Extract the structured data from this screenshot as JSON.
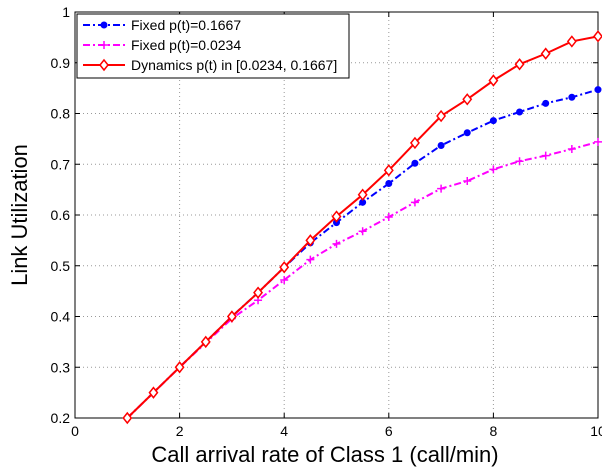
{
  "chart_data": {
    "type": "line",
    "xlabel": "Call arrival rate of Class 1 (call/min)",
    "ylabel": "Link Utilization",
    "x": [
      1,
      1.5,
      2,
      2.5,
      3,
      3.5,
      4,
      4.5,
      5,
      5.5,
      6,
      6.5,
      7,
      7.5,
      8,
      8.5,
      9,
      9.5,
      10
    ],
    "series": [
      {
        "name": "Fixed p(t)=0.1667",
        "color": "#0000ff",
        "marker": "circle",
        "dash": "dashdot",
        "values": [
          0.2,
          0.25,
          0.3,
          0.35,
          0.4,
          0.447,
          0.497,
          0.545,
          0.585,
          0.625,
          0.662,
          0.702,
          0.737,
          0.762,
          0.786,
          0.803,
          0.82,
          0.832,
          0.847
        ]
      },
      {
        "name": "Fixed p(t)=0.0234",
        "color": "#ff00ff",
        "marker": "plus",
        "dash": "dashdot",
        "values": [
          0.2,
          0.25,
          0.3,
          0.348,
          0.396,
          0.432,
          0.472,
          0.512,
          0.543,
          0.568,
          0.596,
          0.625,
          0.652,
          0.667,
          0.69,
          0.706,
          0.717,
          0.73,
          0.744
        ]
      },
      {
        "name": "Dynamics p(t) in [0.0234, 0.1667]",
        "color": "#ff0000",
        "marker": "diamond",
        "dash": "solid",
        "values": [
          0.2,
          0.25,
          0.3,
          0.35,
          0.4,
          0.447,
          0.497,
          0.55,
          0.597,
          0.64,
          0.688,
          0.742,
          0.795,
          0.828,
          0.865,
          0.897,
          0.918,
          0.942,
          0.952
        ]
      }
    ],
    "xlim": [
      0,
      10
    ],
    "xticks": [
      0,
      2,
      4,
      6,
      8,
      10
    ],
    "ylim": [
      0.2,
      1
    ],
    "yticks": [
      0.2,
      0.3,
      0.4,
      0.5,
      0.6,
      0.7,
      0.8,
      0.9,
      1
    ],
    "grid": true,
    "legend": "upper-left"
  }
}
